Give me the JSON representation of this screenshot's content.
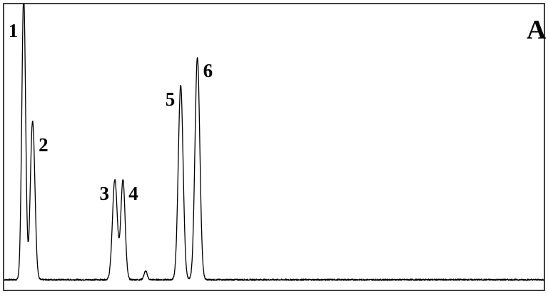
{
  "chart_data": {
    "type": "line",
    "title": "",
    "xlabel": "",
    "ylabel": "",
    "panel_label": "A",
    "grid": false,
    "legend": "none",
    "axis_ticks": false,
    "x_range": [
      0,
      100
    ],
    "y_range": [
      0,
      100
    ],
    "line_color": "#000000",
    "baseline": 3.5,
    "peaks": [
      {
        "label": "1",
        "x": 3.6,
        "height": 100,
        "width": 0.35
      },
      {
        "label": "2",
        "x": 5.3,
        "height": 52,
        "width": 0.4
      },
      {
        "label": "3",
        "x": 20.5,
        "height": 35,
        "width": 0.45
      },
      {
        "label": "4",
        "x": 22.0,
        "height": 35,
        "width": 0.4
      },
      {
        "label": "5",
        "x": 32.7,
        "height": 68,
        "width": 0.45
      },
      {
        "label": "6",
        "x": 35.8,
        "height": 78,
        "width": 0.45
      }
    ],
    "minor_peaks": [
      {
        "x": 4.9,
        "height": 8,
        "width": 0.3
      },
      {
        "x": 26.2,
        "height": 3,
        "width": 0.3
      }
    ]
  }
}
